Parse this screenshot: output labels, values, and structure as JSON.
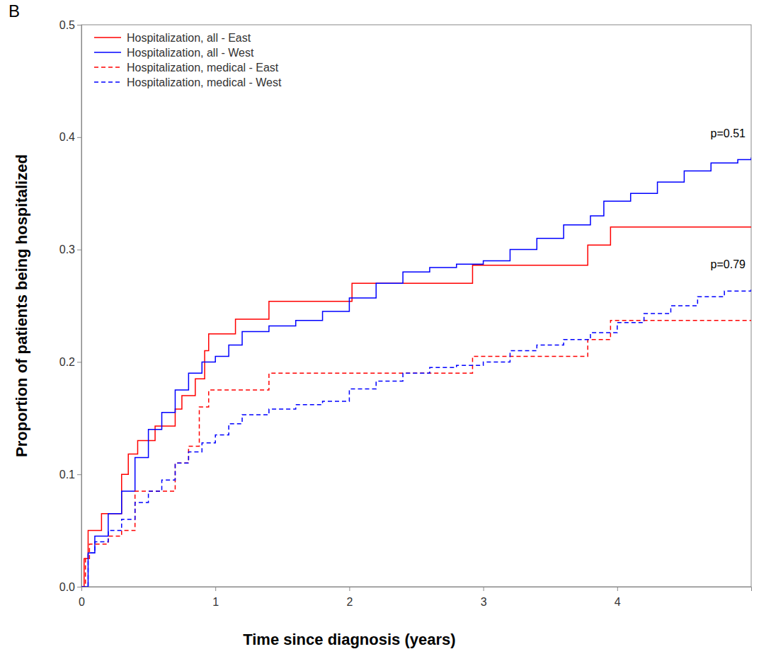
{
  "chart_data": {
    "type": "line",
    "panel_label": "B",
    "x_label": "Time since diagnosis (years)",
    "y_label": "Proportion of patients being hospitalized",
    "xlim": [
      0,
      5
    ],
    "xticks": [
      0,
      1,
      2,
      3,
      4
    ],
    "ylim": [
      0,
      0.5
    ],
    "yticks": [
      {
        "value": 0,
        "label": "0.0"
      },
      {
        "value": 0.1,
        "label": "0.1"
      },
      {
        "value": 0.2,
        "label": "0.2"
      },
      {
        "value": 0.3,
        "label": "0.3"
      },
      {
        "value": 0.4,
        "label": "0.4"
      },
      {
        "value": 0.5,
        "label": "0.5"
      }
    ],
    "legend": "top-left",
    "grid": false,
    "annotations": [
      "p=0.51",
      "p=0.79"
    ],
    "series": [
      {
        "name": "Hospitalization, all - East",
        "color": "#ff0000",
        "line_style": "solid",
        "x": [
          0,
          0.02,
          0.05,
          0.15,
          0.3,
          0.35,
          0.42,
          0.55,
          0.7,
          0.75,
          0.85,
          0.92,
          0.95,
          1.15,
          1.4,
          2.02,
          2.92,
          3.78,
          3.95,
          5
        ],
        "values": [
          0,
          0.025,
          0.05,
          0.065,
          0.1,
          0.118,
          0.13,
          0.143,
          0.158,
          0.17,
          0.185,
          0.21,
          0.225,
          0.238,
          0.254,
          0.27,
          0.286,
          0.304,
          0.32,
          0.32
        ]
      },
      {
        "name": "Hospitalization, all - West",
        "color": "#0000ff",
        "line_style": "solid",
        "x": [
          0,
          0.05,
          0.1,
          0.2,
          0.3,
          0.4,
          0.5,
          0.6,
          0.7,
          0.8,
          0.9,
          1.0,
          1.1,
          1.2,
          1.4,
          1.6,
          1.8,
          2.0,
          2.2,
          2.4,
          2.6,
          2.8,
          3.0,
          3.2,
          3.4,
          3.6,
          3.8,
          3.9,
          4.1,
          4.3,
          4.5,
          4.7,
          4.9,
          5.0
        ],
        "values": [
          0,
          0.03,
          0.045,
          0.065,
          0.085,
          0.115,
          0.14,
          0.155,
          0.175,
          0.19,
          0.2,
          0.205,
          0.215,
          0.227,
          0.232,
          0.237,
          0.245,
          0.257,
          0.27,
          0.28,
          0.284,
          0.287,
          0.29,
          0.3,
          0.31,
          0.322,
          0.33,
          0.343,
          0.35,
          0.36,
          0.37,
          0.377,
          0.38,
          0.382
        ]
      },
      {
        "name": "Hospitalization, medical - East",
        "color": "#ff0000",
        "line_style": "dashed",
        "x": [
          0,
          0.03,
          0.06,
          0.2,
          0.3,
          0.4,
          0.7,
          0.8,
          0.88,
          0.95,
          1.4,
          2.92,
          3.78,
          3.95,
          5
        ],
        "values": [
          0,
          0.025,
          0.038,
          0.045,
          0.05,
          0.085,
          0.11,
          0.125,
          0.16,
          0.175,
          0.19,
          0.205,
          0.22,
          0.237,
          0.237
        ]
      },
      {
        "name": "Hospitalization, medical - West",
        "color": "#0000ff",
        "line_style": "dashed",
        "x": [
          0,
          0.05,
          0.1,
          0.2,
          0.3,
          0.4,
          0.5,
          0.6,
          0.7,
          0.8,
          0.9,
          1.0,
          1.1,
          1.2,
          1.4,
          1.6,
          1.8,
          2.0,
          2.2,
          2.4,
          2.6,
          2.8,
          3.0,
          3.2,
          3.4,
          3.6,
          3.8,
          4.0,
          4.2,
          4.4,
          4.6,
          4.8,
          5.0
        ],
        "values": [
          0,
          0.03,
          0.04,
          0.05,
          0.06,
          0.075,
          0.085,
          0.095,
          0.11,
          0.12,
          0.128,
          0.135,
          0.145,
          0.153,
          0.158,
          0.162,
          0.165,
          0.176,
          0.183,
          0.19,
          0.195,
          0.197,
          0.2,
          0.21,
          0.215,
          0.22,
          0.226,
          0.235,
          0.243,
          0.25,
          0.258,
          0.263,
          0.266
        ]
      }
    ]
  }
}
